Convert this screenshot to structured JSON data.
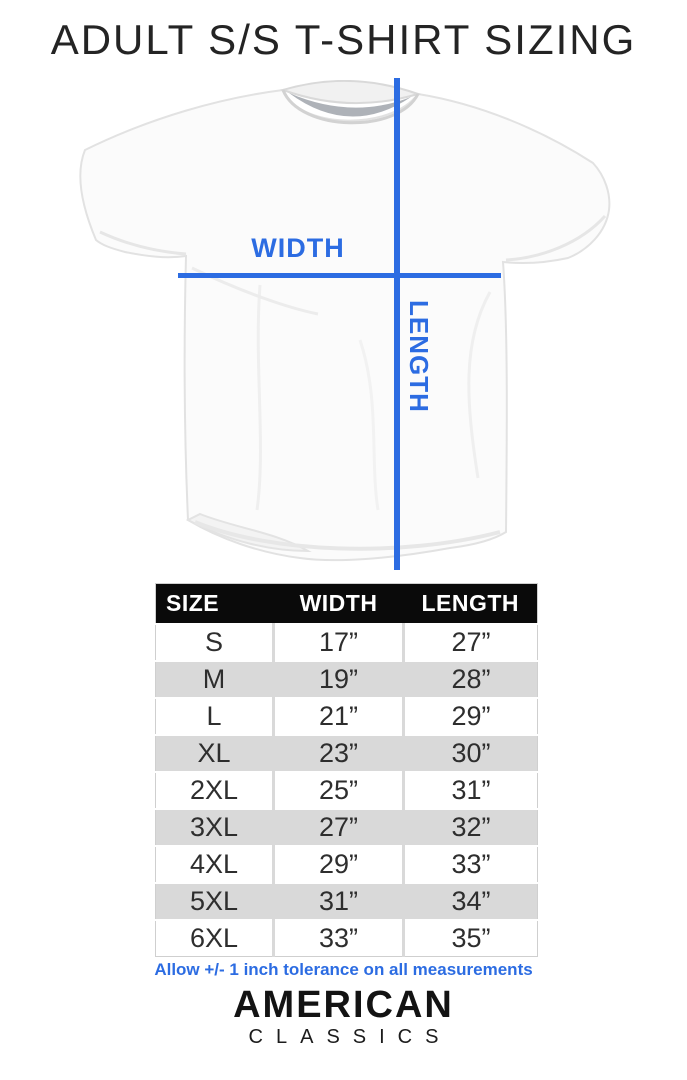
{
  "title": "ADULT S/S T-SHIRT SIZING",
  "figure": {
    "width_label": "WIDTH",
    "length_label": "LENGTH",
    "accent_color": "#2c6ce2"
  },
  "table": {
    "headers": [
      "SIZE",
      "WIDTH",
      "LENGTH"
    ],
    "rows": [
      [
        "S",
        "17”",
        "27”"
      ],
      [
        "M",
        "19”",
        "28”"
      ],
      [
        "L",
        "21”",
        "29”"
      ],
      [
        "XL",
        "23”",
        "30”"
      ],
      [
        "2XL",
        "25”",
        "31”"
      ],
      [
        "3XL",
        "27”",
        "32”"
      ],
      [
        "4XL",
        "29”",
        "33”"
      ],
      [
        "5XL",
        "31”",
        "34”"
      ],
      [
        "6XL",
        "33”",
        "35”"
      ]
    ],
    "stripe_color": "#d9d9d9",
    "header_bg": "#0a0a0a"
  },
  "note": "Allow +/- 1 inch tolerance on all measurements",
  "brand": {
    "name": "AMERICAN",
    "sub": "CLASSICS"
  },
  "chart_data": {
    "type": "table",
    "title": "ADULT S/S T-SHIRT SIZING",
    "columns": [
      "SIZE",
      "WIDTH",
      "LENGTH"
    ],
    "rows": [
      [
        "S",
        "17\"",
        "27\""
      ],
      [
        "M",
        "19\"",
        "28\""
      ],
      [
        "L",
        "21\"",
        "29\""
      ],
      [
        "XL",
        "23\"",
        "30\""
      ],
      [
        "2XL",
        "25\"",
        "31\""
      ],
      [
        "3XL",
        "27\"",
        "32\""
      ],
      [
        "4XL",
        "29\"",
        "33\""
      ],
      [
        "5XL",
        "31\"",
        "34\""
      ],
      [
        "6XL",
        "33\"",
        "35\""
      ]
    ],
    "units": "inches",
    "note": "Allow +/- 1 inch tolerance on all measurements"
  }
}
